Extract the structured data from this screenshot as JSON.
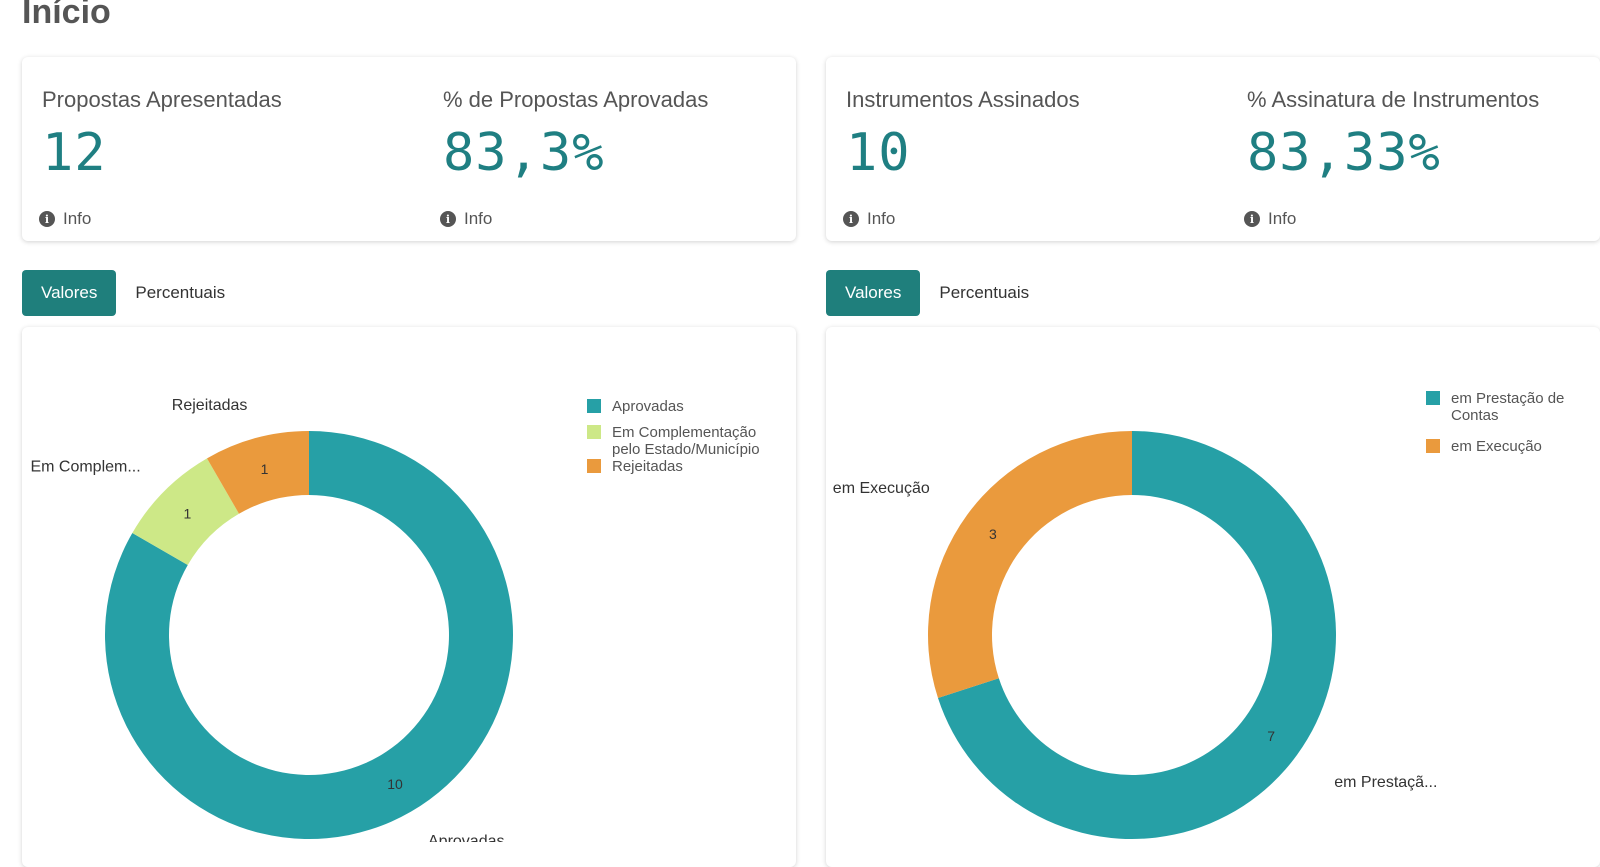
{
  "page": {
    "title": "Início"
  },
  "kpis_left": [
    {
      "label": "Propostas Apresentadas",
      "value": "12",
      "info": "Info"
    },
    {
      "label": "% de Propostas Aprovadas",
      "value": "83,3%",
      "info": "Info"
    }
  ],
  "kpis_right": [
    {
      "label": "Instrumentos Assinados",
      "value": "10",
      "info": "Info"
    },
    {
      "label": "% Assinatura de Instrumentos",
      "value": "83,33%",
      "info": "Info"
    }
  ],
  "tabs_left": {
    "active": "Valores",
    "inactive": "Percentuais"
  },
  "tabs_right": {
    "active": "Valores",
    "inactive": "Percentuais"
  },
  "colors": {
    "teal": "#26a0a6",
    "light_green": "#cde887",
    "orange": "#ea9a3d",
    "kpi_value": "#1f7f82",
    "active_tab": "#1f7f7c"
  },
  "chart_data": [
    {
      "type": "pie",
      "donut": true,
      "categories": [
        "Aprovadas",
        "Em Complementação pelo Estado/Município",
        "Rejeitadas"
      ],
      "values": [
        10,
        1,
        1
      ],
      "slice_labels": [
        "Aprovadas",
        "Em Complem...",
        "Rejeitadas"
      ],
      "legend_placement": "top-right",
      "colors": [
        "#26a0a6",
        "#cde887",
        "#ea9a3d"
      ]
    },
    {
      "type": "pie",
      "donut": true,
      "categories": [
        "em Prestação de Contas",
        "em Execução"
      ],
      "values": [
        7,
        3
      ],
      "slice_labels": [
        "em Prestaçã...",
        "em Execução"
      ],
      "legend_placement": "top-right",
      "colors": [
        "#26a0a6",
        "#ea9a3d"
      ]
    }
  ]
}
